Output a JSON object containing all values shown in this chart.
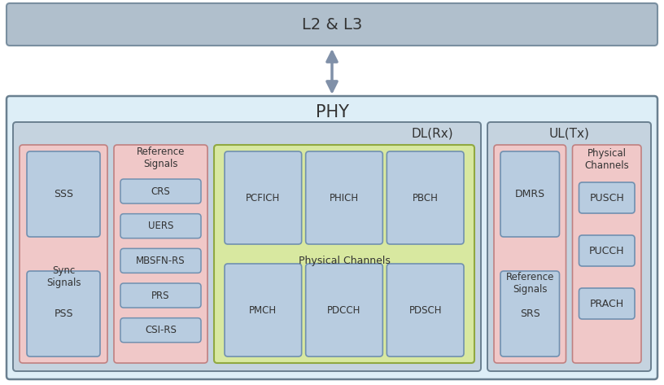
{
  "title_l2l3": "L2 & L3",
  "title_phy": "PHY",
  "title_dl": "DL(Rx)",
  "title_ul": "UL(Tx)",
  "bg_color": "#ffffff",
  "l2l3_box_facecolor": "#b0bfcc",
  "l2l3_box_edgecolor": "#7a8fa0",
  "phy_box_facecolor": "#ddeef7",
  "phy_box_edgecolor": "#6a8090",
  "dl_box_facecolor": "#c5d3df",
  "dl_box_edgecolor": "#6a8090",
  "ul_box_facecolor": "#c5d3df",
  "ul_box_edgecolor": "#6a8090",
  "pink_group_facecolor": "#f0c8c8",
  "pink_group_edgecolor": "#c08080",
  "blue_item_facecolor": "#b8cce0",
  "blue_item_edgecolor": "#7090b0",
  "green_outer_facecolor": "#d8e8a0",
  "green_outer_edgecolor": "#90a840",
  "arrow_color": "#8090a8",
  "font_color": "#333333",
  "ref_items": [
    "CRS",
    "UERS",
    "MBSFN-RS",
    "PRS",
    "CSI-RS"
  ],
  "phych_top": [
    "PCFICH",
    "PHICH",
    "PBCH"
  ],
  "phych_bot": [
    "PMCH",
    "PDCCH",
    "PDSCH"
  ],
  "ul_phych_items": [
    "PUSCH",
    "PUCCH",
    "PRACH"
  ]
}
